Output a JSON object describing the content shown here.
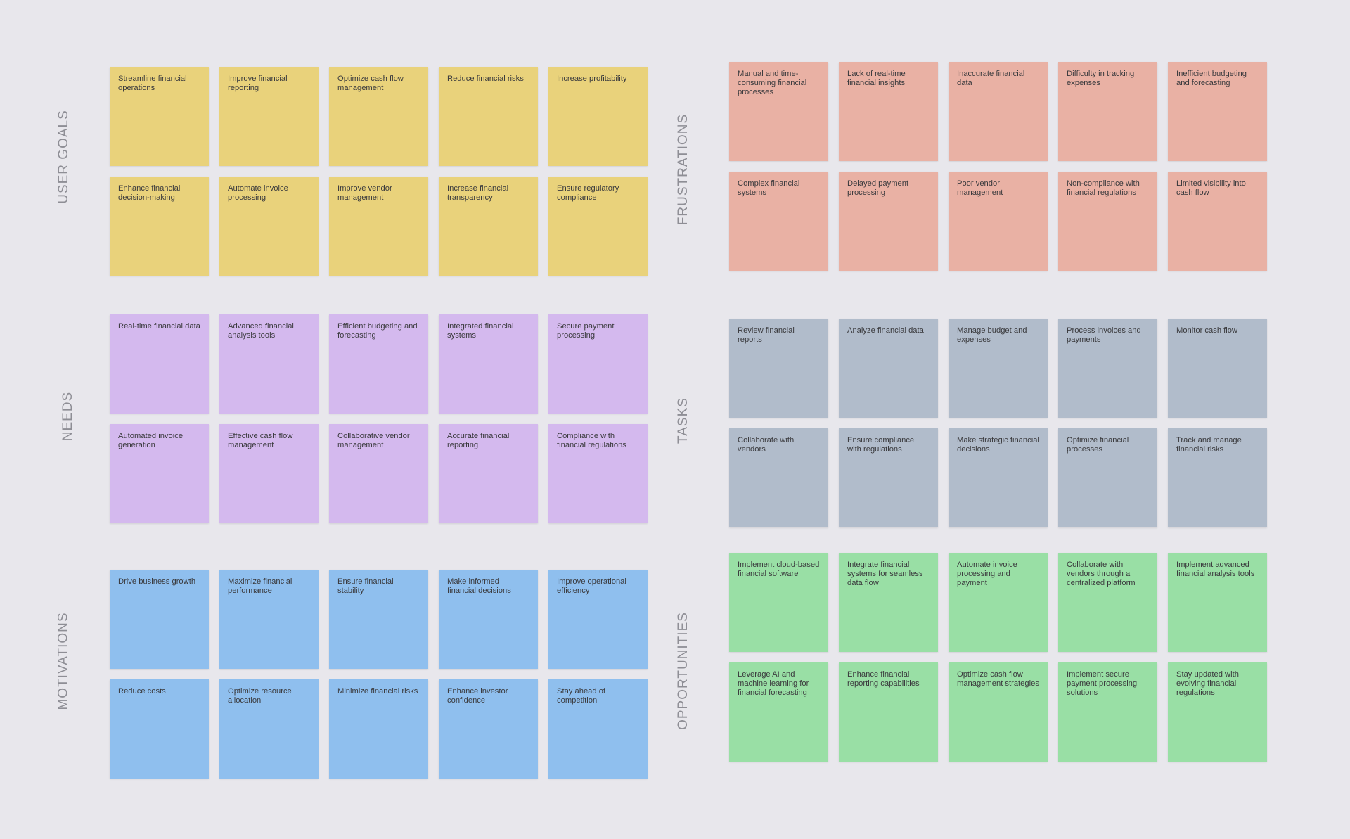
{
  "colors": {
    "canvas": "#e8e7ec",
    "label_text": "#8e8e95",
    "note_text": "#3a3a3d"
  },
  "sections": [
    {
      "key": "user_goals",
      "label": "USER GOALS",
      "color": "#e9d27b",
      "notes": [
        "Streamline financial operations",
        "Improve financial reporting",
        "Optimize cash flow management",
        "Reduce financial risks",
        "Increase profitability",
        "Enhance financial decision-making",
        "Automate invoice processing",
        "Improve vendor management",
        "Increase financial transparency",
        "Ensure regulatory compliance"
      ]
    },
    {
      "key": "frustrations",
      "label": "FRUSTRATIONS",
      "color": "#e9b1a4",
      "notes": [
        "Manual and time-consuming financial processes",
        "Lack of real-time financial insights",
        "Inaccurate financial data",
        "Difficulty in tracking expenses",
        "Inefficient budgeting and forecasting",
        "Complex financial systems",
        "Delayed payment processing",
        "Poor vendor management",
        "Non-compliance with financial regulations",
        "Limited visibility into cash flow"
      ]
    },
    {
      "key": "needs",
      "label": "NEEDS",
      "color": "#d4b9ee",
      "notes": [
        "Real-time financial data",
        "Advanced financial analysis tools",
        "Efficient budgeting and forecasting",
        "Integrated financial systems",
        "Secure payment processing",
        "Automated invoice generation",
        "Effective cash flow management",
        "Collaborative vendor management",
        "Accurate financial reporting",
        "Compliance with financial regulations"
      ]
    },
    {
      "key": "tasks",
      "label": "TASKS",
      "color": "#b1bccb",
      "notes": [
        "Review financial reports",
        "Analyze financial data",
        "Manage budget and expenses",
        "Process invoices and payments",
        "Monitor cash flow",
        "Collaborate with vendors",
        "Ensure compliance with regulations",
        "Make strategic financial decisions",
        "Optimize financial processes",
        "Track and manage financial risks"
      ]
    },
    {
      "key": "motivations",
      "label": "MOTIVATIONS",
      "color": "#8fbfee",
      "notes": [
        "Drive business growth",
        "Maximize financial performance",
        "Ensure financial stability",
        "Make informed financial decisions",
        "Improve operational efficiency",
        "Reduce costs",
        "Optimize resource allocation",
        "Minimize financial risks",
        "Enhance investor confidence",
        "Stay ahead of competition"
      ]
    },
    {
      "key": "opportunities",
      "label": "OPPORTUNITIES",
      "color": "#99dfa5",
      "notes": [
        "Implement cloud-based financial software",
        "Integrate financial systems for seamless data flow",
        "Automate invoice processing and payment",
        "Collaborate with vendors through a centralized platform",
        "Implement advanced financial analysis tools",
        "Leverage AI and machine learning for financial forecasting",
        "Enhance financial reporting capabilities",
        "Optimize cash flow management strategies",
        "Implement secure payment processing solutions",
        "Stay updated with evolving financial regulations"
      ]
    }
  ]
}
